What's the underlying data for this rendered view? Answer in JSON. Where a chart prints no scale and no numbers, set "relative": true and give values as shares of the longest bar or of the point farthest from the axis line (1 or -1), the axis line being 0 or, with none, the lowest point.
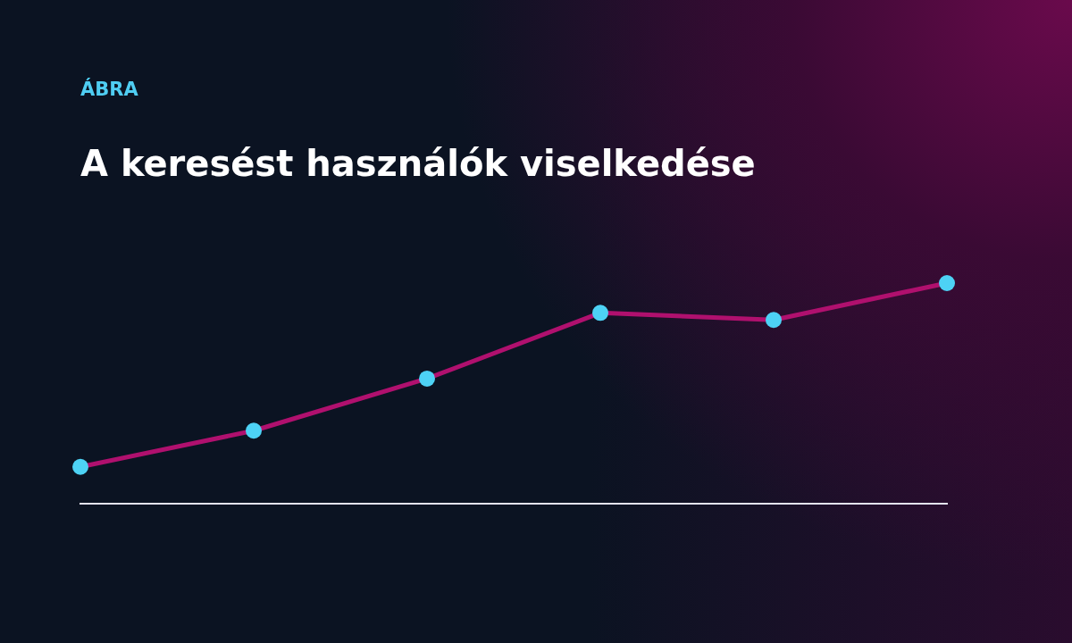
{
  "chart_data": {
    "type": "line",
    "subtitle": "ÁBRA",
    "title": "A keresést használók viselkedése",
    "relative": true,
    "categories": [
      null,
      null,
      null,
      null,
      null,
      null
    ],
    "series": [
      {
        "color": "#b0106e",
        "values": [
          0.167,
          0.331,
          0.567,
          0.865,
          0.833,
          1
        ]
      }
    ],
    "marker": "circle",
    "line_style": "solid",
    "grid": false,
    "legend": false
  }
}
